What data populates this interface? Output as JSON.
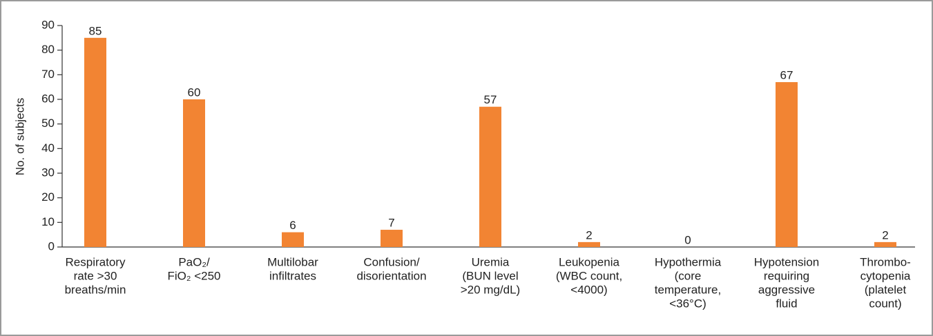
{
  "chart_data": {
    "type": "bar",
    "ylabel": "No. of subjects",
    "categories": [
      [
        "Respiratory",
        "rate >30",
        "breaths/min"
      ],
      [
        "PaO₂/",
        "FiO₂ <250"
      ],
      [
        "Multilobar",
        "infiltrates"
      ],
      [
        "Confusion/",
        "disorientation"
      ],
      [
        "Uremia",
        "(BUN level",
        ">20 mg/dL)"
      ],
      [
        "Leukopenia",
        "(WBC count,",
        "<4000)"
      ],
      [
        "Hypothermia",
        "(core",
        "temperature,",
        "<36°C)"
      ],
      [
        "Hypotension",
        "requiring",
        "aggressive",
        "fluid"
      ],
      [
        "Thrombo-",
        "cytopenia",
        "(platelet",
        "count)"
      ]
    ],
    "values": [
      85,
      60,
      6,
      7,
      57,
      2,
      0,
      67,
      2
    ],
    "color": "#f28433",
    "ylim": [
      0,
      90
    ],
    "yticks": [
      0,
      10,
      20,
      30,
      40,
      50,
      60,
      70,
      80,
      90
    ]
  }
}
